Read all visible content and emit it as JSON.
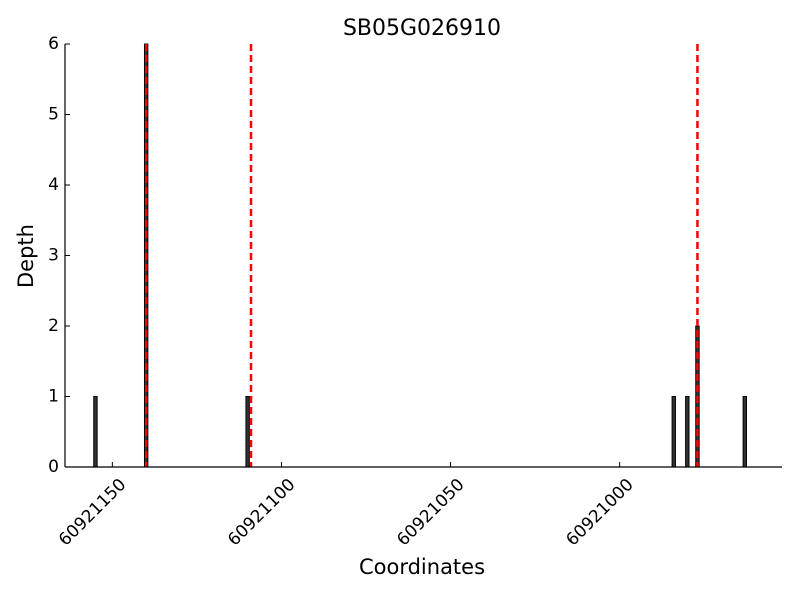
{
  "chart_data": {
    "type": "bar",
    "title": "SB05G026910",
    "x_label": "Coordinates",
    "y_label": "Depth",
    "x": [
      60921155,
      60921140,
      60921110,
      60920984,
      60920980,
      60920977,
      60920963
    ],
    "values": [
      1,
      6,
      1,
      1,
      1,
      2,
      1
    ],
    "color": "#333333",
    "edge_color": "#000000",
    "bar_width": 1,
    "markers": [
      60921140,
      60921109,
      60920977
    ],
    "marker_color": "#ff0000",
    "xlim": [
      60921164,
      60920952
    ],
    "xticks": [
      60921150,
      60921100,
      60921050,
      60921000
    ],
    "ylim": [
      0,
      6
    ],
    "yticks": [
      0,
      1,
      2,
      3,
      4,
      5,
      6
    ]
  }
}
